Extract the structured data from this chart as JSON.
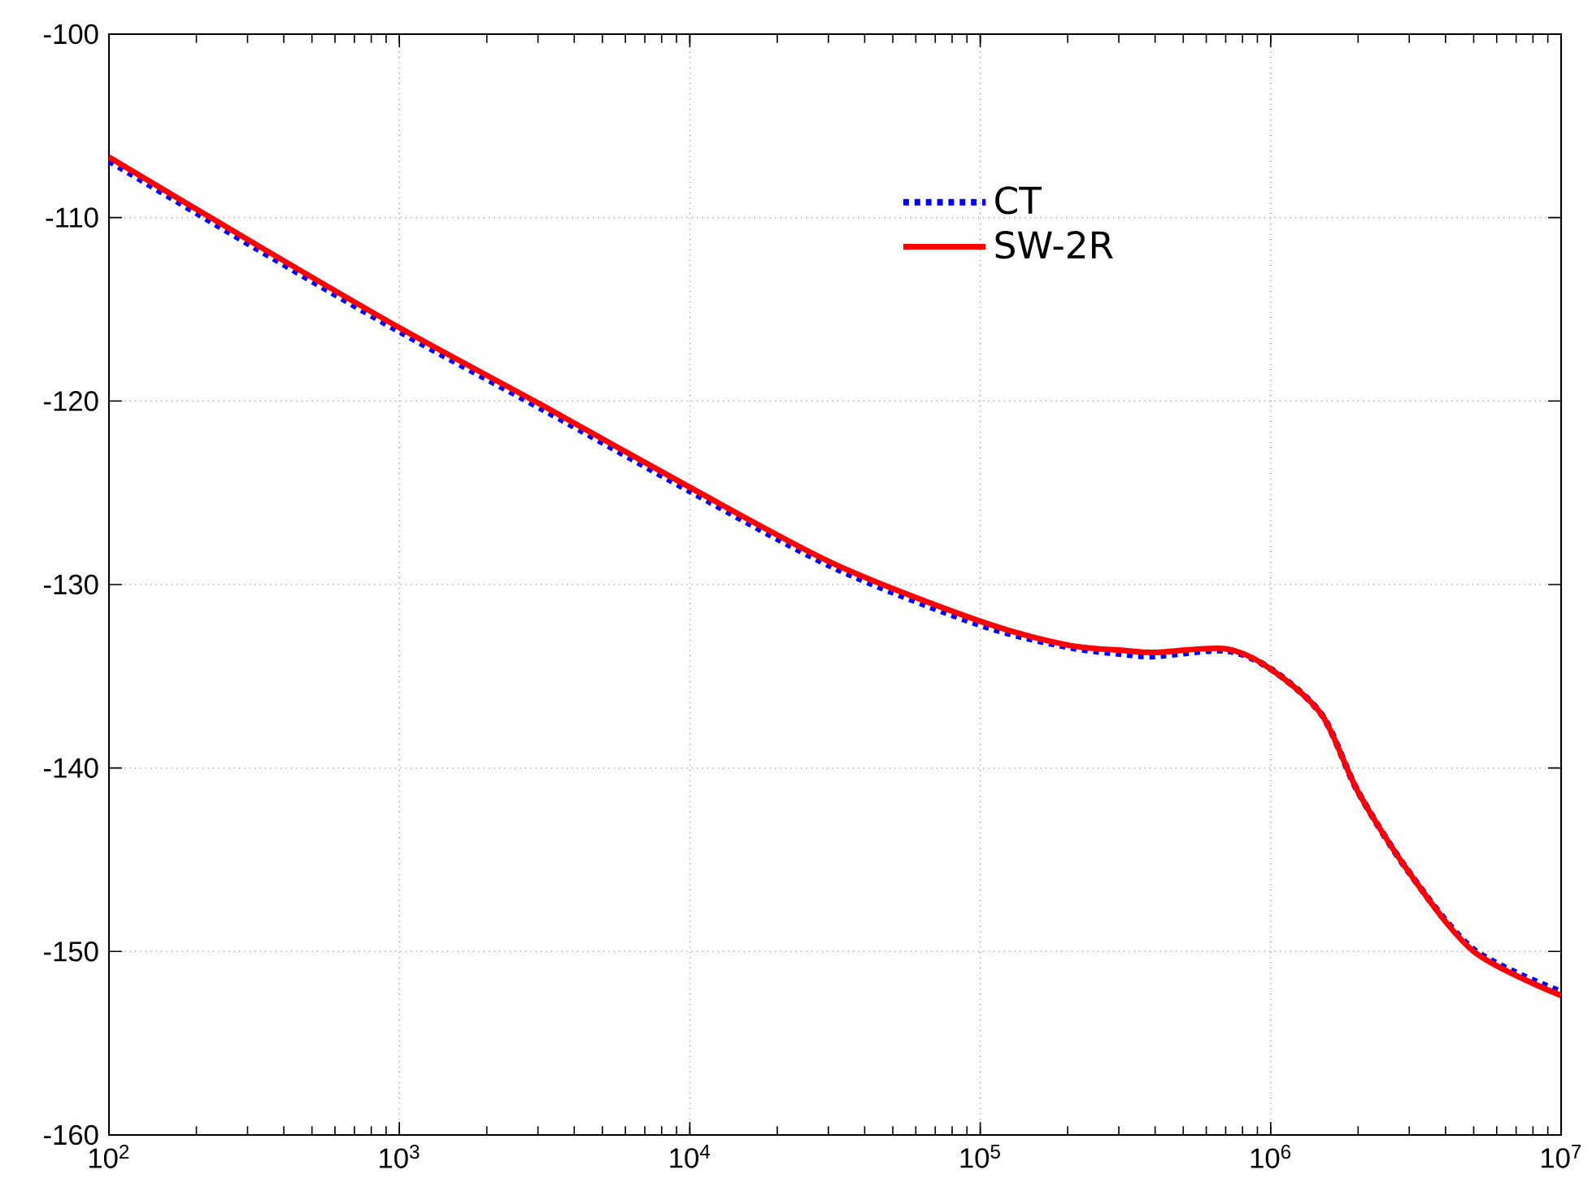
{
  "chart_data": {
    "type": "line",
    "x": [
      100,
      316,
      1000,
      3162,
      10000,
      31623,
      100000,
      200000,
      316228,
      400000,
      700000,
      1000000,
      1500000,
      2000000,
      3000000,
      5000000,
      10000000
    ],
    "series": [
      {
        "name": "CT",
        "color": "#0000ff",
        "line_style": "dotted",
        "values": [
          -106.9,
          -111.6,
          -116.2,
          -120.5,
          -124.9,
          -129.1,
          -132.2,
          -133.4,
          -133.8,
          -133.9,
          -133.6,
          -134.6,
          -137.1,
          -141.3,
          -145.7,
          -149.9,
          -152.2
        ]
      },
      {
        "name": "SW-2R",
        "color": "#ff0000",
        "line_style": "solid",
        "values": [
          -106.7,
          -111.4,
          -116.0,
          -120.3,
          -124.7,
          -128.9,
          -132.0,
          -133.3,
          -133.6,
          -133.7,
          -133.5,
          -134.6,
          -137.1,
          -141.3,
          -145.7,
          -150.0,
          -152.4
        ]
      }
    ],
    "log": "x",
    "xlim": [
      100,
      10000000
    ],
    "xticks": [
      {
        "value": 100,
        "label": "10$^{2}$"
      },
      {
        "value": 1000,
        "label": "10$^{3}$"
      },
      {
        "value": 10000,
        "label": "10$^{4}$"
      },
      {
        "value": 100000,
        "label": "10$^{5}$"
      },
      {
        "value": 1000000,
        "label": "10$^{6}$"
      },
      {
        "value": 10000000,
        "label": "10$^{7}$"
      }
    ],
    "ylim": [
      -160,
      -100
    ],
    "yticks": [
      -160,
      -150,
      -140,
      -130,
      -120,
      -110,
      -100
    ],
    "grid": true,
    "legend": "top right",
    "marker": "none"
  }
}
